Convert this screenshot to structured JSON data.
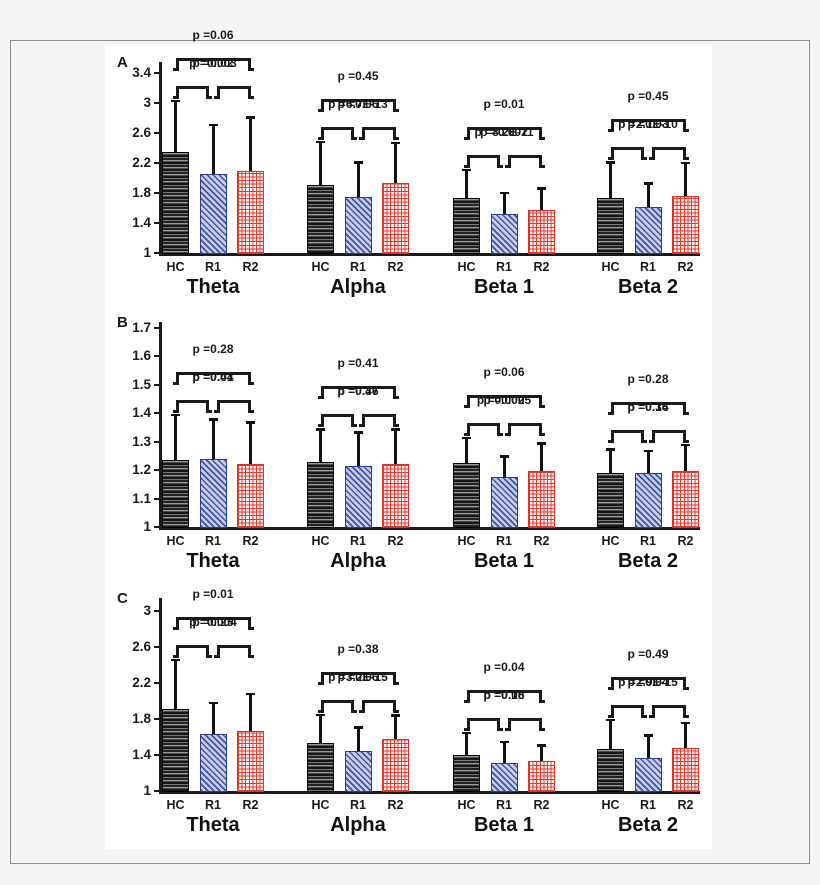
{
  "background": {
    "page_bg": "#f5f6f4",
    "frame_border": "#8c8c8c",
    "figure_bg": "#ffffff"
  },
  "series_legend": [
    {
      "key": "HC",
      "style": "dark-horizontal-stripe-hatch",
      "color": "#2f2f2f"
    },
    {
      "key": "R1",
      "style": "blue-diagonal-hatch",
      "color": "#4053a8"
    },
    {
      "key": "R2",
      "style": "red-grid-hatch",
      "color": "#e23b31"
    }
  ],
  "chart_data": [
    {
      "type": "bar",
      "panel_label": "A",
      "title": "",
      "xlabel": "",
      "ylabel": "",
      "ylim": [
        1,
        3.55
      ],
      "yticks": [
        "1",
        "1.4",
        "1.8",
        "2.2",
        "2.6",
        "3",
        "3.4"
      ],
      "grid": false,
      "legend": "none",
      "categories": [
        "Theta",
        "Alpha",
        "Beta 1",
        "Beta 2"
      ],
      "bar_labels": [
        "HC",
        "R1",
        "R2"
      ],
      "series": [
        {
          "name": "HC",
          "values": [
            2.35,
            1.91,
            1.73,
            1.74
          ],
          "err_top": [
            3.02,
            2.47,
            2.1,
            2.2
          ]
        },
        {
          "name": "R1",
          "values": [
            2.05,
            1.75,
            1.52,
            1.62
          ],
          "err_top": [
            2.7,
            2.2,
            1.79,
            1.92
          ]
        },
        {
          "name": "R2",
          "values": [
            2.1,
            1.93,
            1.58,
            1.76
          ],
          "err_top": [
            2.8,
            2.46,
            1.85,
            2.19
          ]
        }
      ],
      "p_values": [
        {
          "group": "Theta",
          "outer": "p =0.06",
          "hc_r1": "p =0.02",
          "r1_r2": "p =0.003"
        },
        {
          "group": "Alpha",
          "outer": "p =0.45",
          "hc_r1": "p =0.06",
          "r1_r2": "p =6.7E-13"
        },
        {
          "group": "Beta 1",
          "outer": "p =0.01",
          "hc_r1": "p =0.002",
          "r1_r2": "p =8.2E-11"
        },
        {
          "group": "Beta 2",
          "outer": "p =0.45",
          "hc_r1": "p =0.03",
          "r1_r2": "p =2.1E-10"
        }
      ]
    },
    {
      "type": "bar",
      "panel_label": "B",
      "title": "",
      "xlabel": "",
      "ylabel": "",
      "ylim": [
        1,
        1.72
      ],
      "yticks": [
        "1",
        "1.1",
        "1.2",
        "1.3",
        "1.4",
        "1.5",
        "1.6",
        "1.7"
      ],
      "grid": false,
      "legend": "none",
      "categories": [
        "Theta",
        "Alpha",
        "Beta 1",
        "Beta 2"
      ],
      "bar_labels": [
        "HC",
        "R1",
        "R2"
      ],
      "series": [
        {
          "name": "HC",
          "values": [
            1.235,
            1.23,
            1.225,
            1.19
          ],
          "err_top": [
            1.39,
            1.34,
            1.31,
            1.27
          ]
        },
        {
          "name": "R1",
          "values": [
            1.24,
            1.215,
            1.175,
            1.19
          ],
          "err_top": [
            1.375,
            1.33,
            1.245,
            1.265
          ]
        },
        {
          "name": "R2",
          "values": [
            1.22,
            1.22,
            1.195,
            1.195
          ],
          "err_top": [
            1.365,
            1.34,
            1.29,
            1.285
          ]
        }
      ],
      "p_values": [
        {
          "group": "Theta",
          "outer": "p =0.28",
          "hc_r1": "p =0.44",
          "r1_r2": "p =0.01"
        },
        {
          "group": "Alpha",
          "outer": "p =0.41",
          "hc_r1": "p =0.37",
          "r1_r2": "p =0.46"
        },
        {
          "group": "Beta 1",
          "outer": "p =0.06",
          "hc_r1": "p =0.0005",
          "r1_r2": "p =0.02"
        },
        {
          "group": "Beta 2",
          "outer": "p =0.28",
          "hc_r1": "p =0.34",
          "r1_r2": "p =0.16"
        }
      ]
    },
    {
      "type": "bar",
      "panel_label": "C",
      "title": "",
      "xlabel": "",
      "ylabel": "",
      "ylim": [
        1,
        3.15
      ],
      "yticks": [
        "1",
        "1.4",
        "1.8",
        "2.2",
        "2.6",
        "3"
      ],
      "grid": false,
      "legend": "none",
      "categories": [
        "Theta",
        "Alpha",
        "Beta 1",
        "Beta 2"
      ],
      "bar_labels": [
        "HC",
        "R1",
        "R2"
      ],
      "series": [
        {
          "name": "HC",
          "values": [
            1.91,
            1.54,
            1.4,
            1.47
          ],
          "err_top": [
            2.45,
            1.84,
            1.64,
            1.78
          ]
        },
        {
          "name": "R1",
          "values": [
            1.64,
            1.45,
            1.31,
            1.37
          ],
          "err_top": [
            1.97,
            1.7,
            1.54,
            1.61
          ]
        },
        {
          "name": "R2",
          "values": [
            1.67,
            1.58,
            1.33,
            1.48
          ],
          "err_top": [
            2.07,
            1.83,
            1.5,
            1.75
          ]
        }
      ],
      "p_values": [
        {
          "group": "Theta",
          "outer": "p =0.01",
          "hc_r1": "p =0.004",
          "r1_r2": "p =0.25"
        },
        {
          "group": "Alpha",
          "outer": "p =0.38",
          "hc_r1": "p =0.06",
          "r1_r2": "p =3.2E-15"
        },
        {
          "group": "Beta 1",
          "outer": "p =0.04",
          "hc_r1": "p =0.06",
          "r1_r2": "p =0.18"
        },
        {
          "group": "Beta 2",
          "outer": "p =0.49",
          "hc_r1": "p =0.04",
          "r1_r2": "p =2.9E-15"
        }
      ]
    }
  ]
}
